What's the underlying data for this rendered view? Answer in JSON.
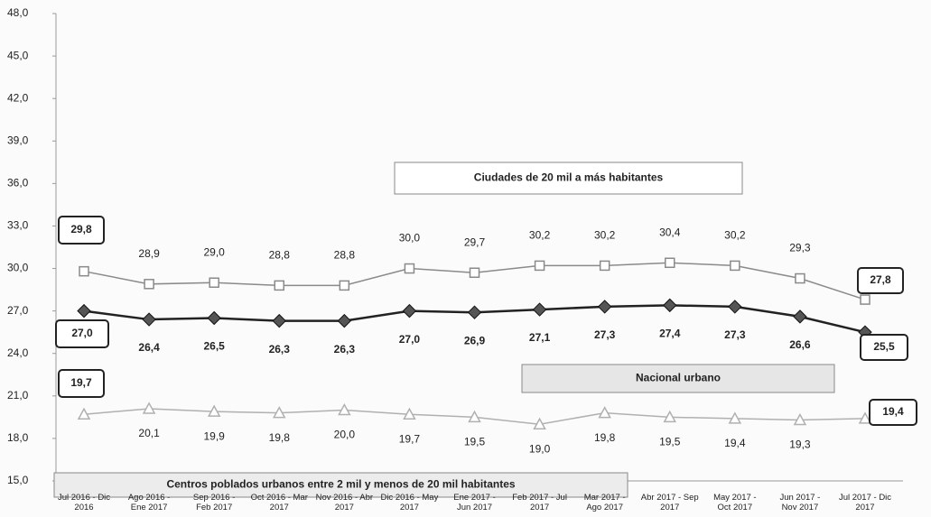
{
  "chart_data": {
    "type": "line",
    "categories": [
      "Jul 2016 - Dic 2016",
      "Ago 2016 - Ene 2017",
      "Sep 2016 - Feb 2017",
      "Oct 2016 - Mar 2017",
      "Nov 2016 - Abr 2017",
      "Dic 2016 - May 2017",
      "Ene 2017 - Jun 2017",
      "Feb 2017 - Jul 2017",
      "Mar 2017 - Ago 2017",
      "Abr 2017 - Sep 2017",
      "May 2017 - Oct 2017",
      "Jun 2017 - Nov 2017",
      "Jul 2017 - Dic 2017"
    ],
    "ylim": [
      15,
      48
    ],
    "yticks": [
      {
        "value": 15,
        "label": "15,0"
      },
      {
        "value": 18,
        "label": "18,0"
      },
      {
        "value": 21,
        "label": "21,0"
      },
      {
        "value": 24,
        "label": "24,0"
      },
      {
        "value": 27,
        "label": "27,0"
      },
      {
        "value": 30,
        "label": "30,0"
      },
      {
        "value": 33,
        "label": "33,0"
      },
      {
        "value": 36,
        "label": "36,0"
      },
      {
        "value": 39,
        "label": "39,0"
      },
      {
        "value": 42,
        "label": "42,0"
      },
      {
        "value": 45,
        "label": "45,0"
      },
      {
        "value": 48,
        "label": "48,0"
      }
    ],
    "grid": false,
    "series": [
      {
        "name": "Ciudades de 20 mil a más habitantes",
        "color": "#8a8a8a",
        "values": [
          29.8,
          28.9,
          29.0,
          28.8,
          28.8,
          30.0,
          29.7,
          30.2,
          30.2,
          30.4,
          30.2,
          29.3,
          27.8
        ],
        "value_labels": [
          "29,8",
          "28,9",
          "29,0",
          "28,8",
          "28,8",
          "30,0",
          "29,7",
          "30,2",
          "30,2",
          "30,4",
          "30,2",
          "29,3",
          "27,8"
        ]
      },
      {
        "name": "Nacional urbano",
        "color": "#222222",
        "values": [
          27.0,
          26.4,
          26.5,
          26.3,
          26.3,
          27.0,
          26.9,
          27.1,
          27.3,
          27.4,
          27.3,
          26.6,
          25.5
        ],
        "value_labels": [
          "27,0",
          "26,4",
          "26,5",
          "26,3",
          "26,3",
          "27,0",
          "26,9",
          "27,1",
          "27,3",
          "27,4",
          "27,3",
          "26,6",
          "25,5"
        ]
      },
      {
        "name": "Centros poblados urbanos entre 2 mil y menos de 20 mil habitantes",
        "color": "#b0b0b0",
        "values": [
          19.7,
          20.1,
          19.9,
          19.8,
          20.0,
          19.7,
          19.5,
          19.0,
          19.8,
          19.5,
          19.4,
          19.3,
          19.4
        ],
        "value_labels": [
          "19,7",
          "20,1",
          "19,9",
          "19,8",
          "20,0",
          "19,7",
          "19,5",
          "19,0",
          "19,8",
          "19,5",
          "19,4",
          "19,3",
          "19,4"
        ]
      }
    ]
  }
}
